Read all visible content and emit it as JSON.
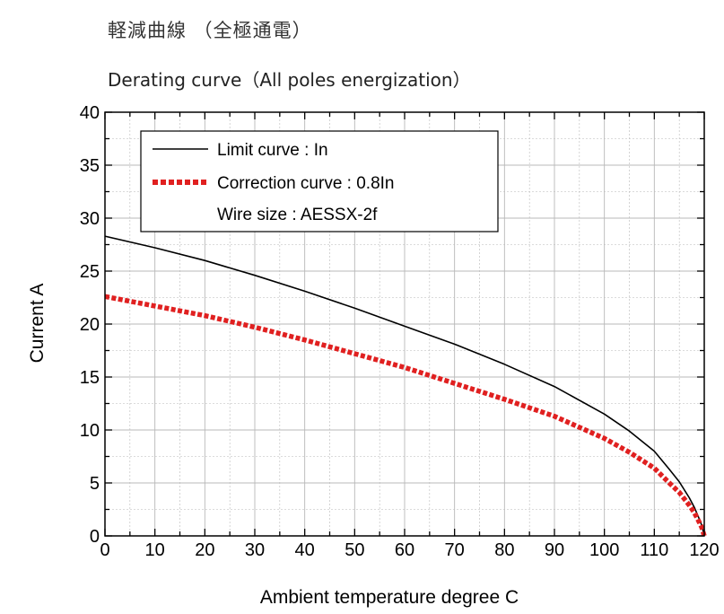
{
  "titles": {
    "japanese": "軽減曲線 （全極通電）",
    "english": "Derating curve（All poles energization）"
  },
  "chart_data": {
    "type": "line",
    "xlabel": "Ambient temperature  degree C",
    "ylabel": "Current  A",
    "xlim": [
      0,
      120
    ],
    "ylim": [
      0,
      40
    ],
    "x_ticks": [
      0,
      10,
      20,
      30,
      40,
      50,
      60,
      70,
      80,
      90,
      100,
      110,
      120
    ],
    "y_ticks": [
      0,
      5,
      10,
      15,
      20,
      25,
      30,
      35,
      40
    ],
    "grid": true,
    "legend_position": "top-left",
    "legend_note": "Wire size : AESSX-2f",
    "colors": {
      "limit": "#000000",
      "correction": "#e02020",
      "grid": "#b8b8b8"
    },
    "series": [
      {
        "name": "Limit curve : In",
        "style": "solid",
        "x": [
          0,
          10,
          20,
          30,
          40,
          50,
          60,
          70,
          80,
          90,
          100,
          105,
          110,
          113,
          115,
          117,
          118,
          119,
          119.5,
          120
        ],
        "y": [
          28.3,
          27.2,
          26.0,
          24.6,
          23.1,
          21.5,
          19.8,
          18.1,
          16.2,
          14.1,
          11.5,
          9.9,
          8.0,
          6.3,
          5.1,
          3.6,
          2.7,
          1.6,
          1.0,
          0.0
        ]
      },
      {
        "name": "Correction curve : 0.8In",
        "style": "dotted",
        "x": [
          0,
          10,
          20,
          30,
          40,
          50,
          60,
          70,
          80,
          90,
          100,
          105,
          110,
          113,
          115,
          117,
          118,
          119,
          119.5,
          120
        ],
        "y": [
          22.6,
          21.7,
          20.8,
          19.7,
          18.5,
          17.2,
          15.9,
          14.4,
          12.9,
          11.3,
          9.2,
          7.9,
          6.4,
          5.0,
          4.1,
          2.9,
          2.2,
          1.3,
          0.8,
          0.0
        ]
      }
    ]
  }
}
